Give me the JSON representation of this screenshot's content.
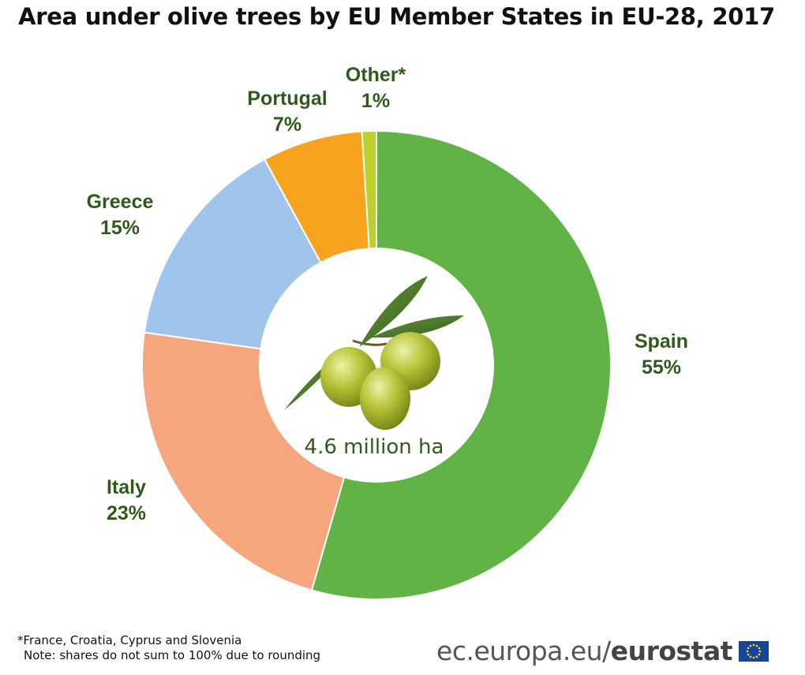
{
  "chart_data": {
    "type": "pie",
    "style": "donut",
    "title": "Area under olive trees by EU Member States in EU-28, 2017",
    "categories": [
      "Spain",
      "Italy",
      "Greece",
      "Portugal",
      "Other*"
    ],
    "values": [
      55,
      23,
      15,
      7,
      1
    ],
    "value_labels": [
      "55%",
      "23%",
      "15%",
      "7%",
      "1%"
    ],
    "colors": [
      "#62b346",
      "#f6a67d",
      "#a0c5eb",
      "#f7a31d",
      "#bcd02a"
    ],
    "label_color": "#2f5a1c",
    "center_label": "4.6 million ha",
    "center_image": "olive-branch-icon",
    "legend": "none"
  },
  "footnotes": [
    "*France, Croatia, Cyprus and Slovenia",
    "Note: shares do not sum to 100% due to rounding"
  ],
  "source": {
    "domain": "ec.europa.eu/",
    "brand": "eurostat",
    "logo": "eu-flag-icon"
  }
}
